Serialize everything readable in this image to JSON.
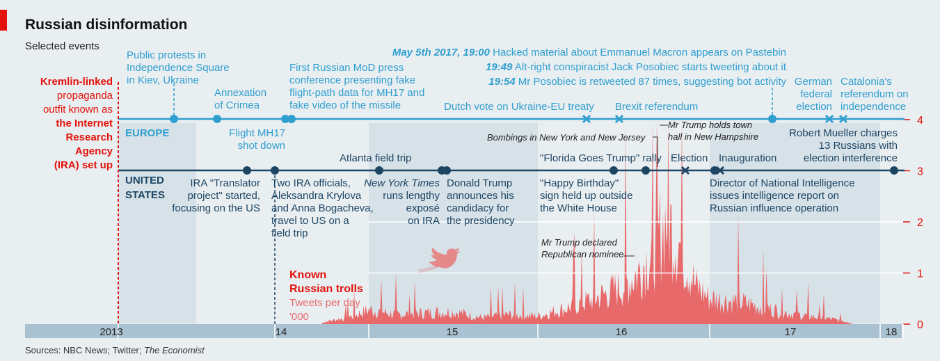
{
  "title": "Russian disinformation",
  "subtitle": "Selected events",
  "sources": {
    "prefix": "Sources: NBC News; Twitter; ",
    "italic": "The Economist"
  },
  "colors": {
    "background": "#e9eef1",
    "band": "#d6e1e8",
    "europe": "#2f9fd0",
    "us": "#1c4563",
    "ira_red": "#e3120b",
    "tweets": "#e8696a",
    "axis_bar": "#a9c1d0"
  },
  "ira_note": {
    "lines": [
      "Kremlin-linked",
      "propaganda",
      "outfit known as",
      "the Internet",
      "Research",
      "Agency",
      "(IRA) set up"
    ],
    "bold_from": 3
  },
  "row_labels": {
    "europe": "EUROPE",
    "us_1": "UNITED",
    "us_2": "STATES"
  },
  "trolls_label": {
    "line1": "Known",
    "line2": "Russian trolls",
    "line3": "Tweets per day",
    "line4": "'000"
  },
  "twitter_icon": "twitter-bird-icon",
  "x_ticks": [
    "2013",
    "14",
    "15",
    "16",
    "17",
    "18"
  ],
  "chart_data": {
    "type": "area",
    "series": [
      {
        "name": "Known Russian trolls",
        "unit": "Tweets per day, '000"
      }
    ],
    "y_ticks": [
      "0",
      "1",
      "2",
      "3",
      "4"
    ],
    "ylim": [
      0,
      4
    ],
    "x": [
      "2014-07",
      "2014-09",
      "2014-11",
      "2015-01",
      "2015-03",
      "2015-05",
      "2015-07",
      "2015-09",
      "2015-11",
      "2016-01",
      "2016-03",
      "2016-05",
      "2016-07",
      "2016-08",
      "2016-09",
      "2016-10",
      "2016-11",
      "2016-12",
      "2017-01",
      "2017-03",
      "2017-05",
      "2017-07",
      "2017-09",
      "2017-11"
    ],
    "values": [
      0.05,
      0.15,
      0.25,
      0.45,
      0.3,
      0.35,
      0.4,
      0.2,
      0.3,
      0.25,
      0.5,
      0.8,
      1.2,
      1.6,
      2.3,
      3.3,
      2.4,
      1.2,
      0.8,
      0.7,
      0.5,
      0.3,
      0.2,
      0.05
    ]
  },
  "europe_events": [
    {
      "label": "Public protests in|Independence Square|in Kiev, Ukraine",
      "marker": "dot"
    },
    {
      "label": "Annexation|of Crimea",
      "marker": "dot"
    },
    {
      "label": "Flight MH17|shot down",
      "marker": "dot"
    },
    {
      "label": "First Russian MoD press|conference presenting fake|flight-path data for MH17 and|fake video of the missile",
      "marker": "dot"
    },
    {
      "label": "Dutch vote on Ukraine-EU treaty",
      "marker": "x"
    },
    {
      "label": "Brexit referendum",
      "marker": "x"
    },
    {
      "label": "Macron leak",
      "marker": "dot"
    },
    {
      "label": "German|federal|election",
      "marker": "x"
    },
    {
      "label": "Catalonia's|referendum on|independence",
      "marker": "x"
    }
  ],
  "macron_notes": [
    {
      "time": "May 5th 2017, 19:00",
      "text": " Hacked material about Emmanuel Macron appears on Pastebin"
    },
    {
      "time": "19:49",
      "text": " Alt-right conspiracist Jack Posobiec starts tweeting about it"
    },
    {
      "time": "19:54",
      "text": " Mr Posobiec is retweeted 87 times, suggesting bot activity"
    }
  ],
  "mueller_note": "Robert Mueller charges|13 Russians with|election interference",
  "us_events": [
    {
      "label": "IRA \"Translator|project\" started,|focusing on the US",
      "marker": "dot"
    },
    {
      "label": "Two IRA officials,|Aleksandra Krylova|and Anna Bogacheva,|travel to US on a|field trip",
      "marker": "dot"
    },
    {
      "label": "Atlanta field trip",
      "marker": "dot"
    },
    {
      "label": "New York Times|runs lengthy|exposé|on IRA",
      "marker": "dot",
      "italic_first": true
    },
    {
      "label": "Donald Trump|announces his|candidacy for|the presidency",
      "marker": "dot"
    },
    {
      "label": "\"Florida Goes Trump\" rally",
      "marker": "dot"
    },
    {
      "label": "\"Happy Birthday\"|sign held up outside|the White House",
      "marker": "dot"
    },
    {
      "label": "Election",
      "marker": "x"
    },
    {
      "label": "Inauguration",
      "marker": "x"
    },
    {
      "label": "Director of National Intelligence|issues intelligence report on|Russian influence operation",
      "marker": "dot"
    }
  ],
  "us_italic_notes": [
    {
      "label": "Bombings in New York and New Jersey"
    },
    {
      "label": "Mr Trump holds town|hall in New Hampshire"
    },
    {
      "label": "Mr Trump declared|Republican nominee"
    }
  ]
}
